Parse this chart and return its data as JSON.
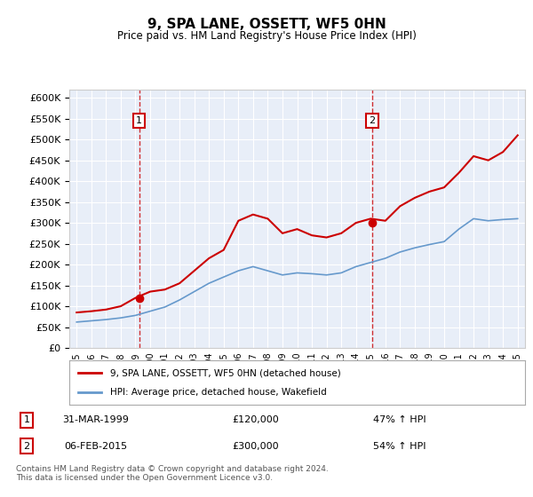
{
  "title": "9, SPA LANE, OSSETT, WF5 0HN",
  "subtitle": "Price paid vs. HM Land Registry's House Price Index (HPI)",
  "background_color": "#e8eef8",
  "plot_bg_color": "#e8eef8",
  "hpi_years": [
    1995,
    1996,
    1997,
    1998,
    1999,
    2000,
    2001,
    2002,
    2003,
    2004,
    2005,
    2006,
    2007,
    2008,
    2009,
    2010,
    2011,
    2012,
    2013,
    2014,
    2015,
    2016,
    2017,
    2018,
    2019,
    2020,
    2021,
    2022,
    2023,
    2024,
    2025
  ],
  "hpi_values": [
    62000,
    65000,
    68000,
    72000,
    78000,
    88000,
    98000,
    115000,
    135000,
    155000,
    170000,
    185000,
    195000,
    185000,
    175000,
    180000,
    178000,
    175000,
    180000,
    195000,
    205000,
    215000,
    230000,
    240000,
    248000,
    255000,
    285000,
    310000,
    305000,
    308000,
    310000
  ],
  "red_years": [
    1995,
    1996,
    1997,
    1998,
    1999,
    2000,
    2001,
    2002,
    2003,
    2004,
    2005,
    2006,
    2007,
    2008,
    2009,
    2010,
    2011,
    2012,
    2013,
    2014,
    2015,
    2016,
    2017,
    2018,
    2019,
    2020,
    2021,
    2022,
    2023,
    2024,
    2025
  ],
  "red_values": [
    85000,
    88000,
    92000,
    100000,
    120000,
    135000,
    140000,
    155000,
    185000,
    215000,
    235000,
    305000,
    320000,
    310000,
    275000,
    285000,
    270000,
    265000,
    275000,
    300000,
    310000,
    305000,
    340000,
    360000,
    375000,
    385000,
    420000,
    460000,
    450000,
    470000,
    510000
  ],
  "sale1_year": 1999.25,
  "sale1_value": 120000,
  "sale1_label": "1",
  "sale1_date": "31-MAR-1999",
  "sale1_price": "£120,000",
  "sale1_hpi": "47% ↑ HPI",
  "sale2_year": 2015.1,
  "sale2_value": 300000,
  "sale2_label": "2",
  "sale2_date": "06-FEB-2015",
  "sale2_price": "£300,000",
  "sale2_hpi": "54% ↑ HPI",
  "vline1_year": 1999.25,
  "vline2_year": 2015.1,
  "ylim": [
    0,
    620000
  ],
  "xlim_left": 1994.5,
  "xlim_right": 2025.5,
  "xticks": [
    1995,
    1996,
    1997,
    1998,
    1999,
    2000,
    2001,
    2002,
    2003,
    2004,
    2005,
    2006,
    2007,
    2008,
    2009,
    2010,
    2011,
    2012,
    2013,
    2014,
    2015,
    2016,
    2017,
    2018,
    2019,
    2020,
    2021,
    2022,
    2023,
    2024,
    2025
  ],
  "yticks": [
    0,
    50000,
    100000,
    150000,
    200000,
    250000,
    300000,
    350000,
    400000,
    450000,
    500000,
    550000,
    600000
  ],
  "legend_red_label": "9, SPA LANE, OSSETT, WF5 0HN (detached house)",
  "legend_blue_label": "HPI: Average price, detached house, Wakefield",
  "footer": "Contains HM Land Registry data © Crown copyright and database right 2024.\nThis data is licensed under the Open Government Licence v3.0.",
  "red_color": "#cc0000",
  "blue_color": "#6699cc",
  "vline_color": "#cc0000",
  "marker_color": "#cc0000",
  "box_edge_color": "#cc0000"
}
